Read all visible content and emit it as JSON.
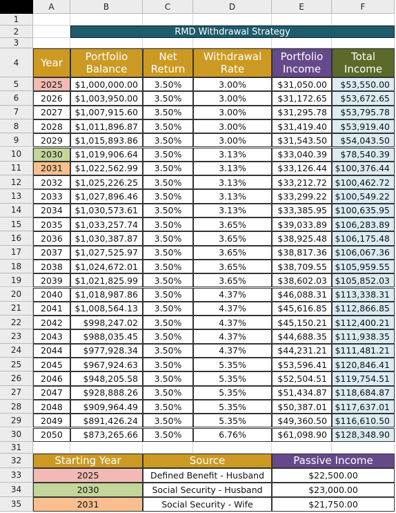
{
  "columns": [
    "A",
    "B",
    "C",
    "D",
    "E",
    "F"
  ],
  "row_numbers": [
    "1",
    "2",
    "3",
    "4",
    "5",
    "6",
    "7",
    "8",
    "9",
    "10",
    "11",
    "12",
    "13",
    "14",
    "15",
    "16",
    "17",
    "18",
    "19",
    "20",
    "21",
    "22",
    "23",
    "24",
    "25",
    "26",
    "27",
    "28",
    "29",
    "30",
    "31",
    "32",
    "33",
    "34",
    "35"
  ],
  "title": "RMD Withdrawal Strategy",
  "headers": [
    "Year",
    "Portfolio Balance",
    "Net Return",
    "Withdrawal Rate",
    "Portfolio Income",
    "Total Income"
  ],
  "rows": [
    [
      "2025",
      "$1,000,000.00",
      "3.50%",
      "3.00%",
      "$31,050.00",
      "$53,550.00"
    ],
    [
      "2026",
      "$1,003,950.00",
      "3.50%",
      "3.00%",
      "$31,172.65",
      "$53,672.65"
    ],
    [
      "2027",
      "$1,007,915.60",
      "3.50%",
      "3.00%",
      "$31,295.78",
      "$53,795.78"
    ],
    [
      "2028",
      "$1,011,896.87",
      "3.50%",
      "3.00%",
      "$31,419.40",
      "$53,919.40"
    ],
    [
      "2029",
      "$1,015,893.86",
      "3.50%",
      "3.00%",
      "$31,543.50",
      "$54,043.50"
    ],
    [
      "2030",
      "$1,019,906.64",
      "3.50%",
      "3.13%",
      "$33,040.39",
      "$78,540.39"
    ],
    [
      "2031",
      "$1,022,562.99",
      "3.50%",
      "3.13%",
      "$33,126.44",
      "$100,376.44"
    ],
    [
      "2032",
      "$1,025,226.25",
      "3.50%",
      "3.13%",
      "$33,212.72",
      "$100,462.72"
    ],
    [
      "2033",
      "$1,027,896.46",
      "3.50%",
      "3.13%",
      "$33,299.22",
      "$100,549.22"
    ],
    [
      "2034",
      "$1,030,573.61",
      "3.50%",
      "3.13%",
      "$33,385.95",
      "$100,635.95"
    ],
    [
      "2035",
      "$1,033,257.74",
      "3.50%",
      "3.65%",
      "$39,033.89",
      "$106,283.89"
    ],
    [
      "2036",
      "$1,030,387.87",
      "3.50%",
      "3.65%",
      "$38,925.48",
      "$106,175.48"
    ],
    [
      "2037",
      "$1,027,525.97",
      "3.50%",
      "3.65%",
      "$38,817.36",
      "$106,067.36"
    ],
    [
      "2038",
      "$1,024,672.01",
      "3.50%",
      "3.65%",
      "$38,709.55",
      "$105,959.55"
    ],
    [
      "2039",
      "$1,021,825.99",
      "3.50%",
      "3.65%",
      "$38,602.03",
      "$105,852.03"
    ],
    [
      "2040",
      "$1,018,987.86",
      "3.50%",
      "4.37%",
      "$46,088.31",
      "$113,338.31"
    ],
    [
      "2041",
      "$1,008,564.13",
      "3.50%",
      "4.37%",
      "$45,616.85",
      "$112,866.85"
    ],
    [
      "2042",
      "$998,247.02",
      "3.50%",
      "4.37%",
      "$45,150.21",
      "$112,400.21"
    ],
    [
      "2043",
      "$988,035.45",
      "3.50%",
      "4.37%",
      "$44,688.35",
      "$111,938.35"
    ],
    [
      "2044",
      "$977,928.34",
      "3.50%",
      "4.37%",
      "$44,231.21",
      "$111,481.21"
    ],
    [
      "2045",
      "$967,924.63",
      "3.50%",
      "5.35%",
      "$53,596.41",
      "$120,846.41"
    ],
    [
      "2046",
      "$948,205.58",
      "3.50%",
      "5.35%",
      "$52,504.51",
      "$119,754.51"
    ],
    [
      "2047",
      "$928,888.26",
      "3.50%",
      "5.35%",
      "$51,434.87",
      "$118,684.87"
    ],
    [
      "2048",
      "$909,964.49",
      "3.50%",
      "5.35%",
      "$50,387.01",
      "$117,637.01"
    ],
    [
      "2049",
      "$891,426.24",
      "3.50%",
      "5.35%",
      "$49,360.50",
      "$116,610.50"
    ],
    [
      "2050",
      "$873,265.66",
      "3.50%",
      "6.76%",
      "$61,098.90",
      "$128,348.90"
    ]
  ],
  "summary": {
    "headers": [
      "Starting Year",
      "Source",
      "Passive Income"
    ],
    "rows": [
      [
        "2025",
        "Defined Benefit - Husband",
        "$22,500.00"
      ],
      [
        "2030",
        "Social Security - Husband",
        "$23,000.00"
      ],
      [
        "2031",
        "Social Security - Wife",
        "$21,750.00"
      ]
    ]
  }
}
